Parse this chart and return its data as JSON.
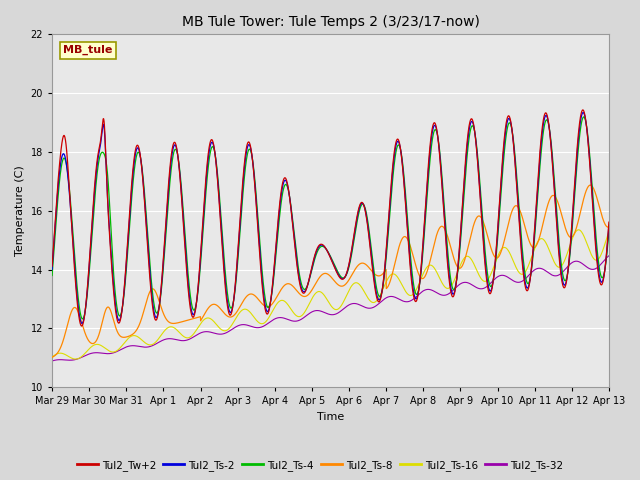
{
  "title": "MB Tule Tower: Tule Temps 2 (3/23/17-now)",
  "xlabel": "Time",
  "ylabel": "Temperature (C)",
  "ylim": [
    10,
    22
  ],
  "yticks": [
    10,
    12,
    14,
    16,
    18,
    20,
    22
  ],
  "fig_bg": "#d8d8d8",
  "plot_bg": "#e8e8e8",
  "grid_color": "#ffffff",
  "series_colors": {
    "Tul2_Tw+2": "#cc0000",
    "Tul2_Ts-2": "#0000dd",
    "Tul2_Ts-4": "#00bb00",
    "Tul2_Ts-8": "#ff8800",
    "Tul2_Ts-16": "#dddd00",
    "Tul2_Ts-32": "#9900aa"
  },
  "label_box": {
    "text": "MB_tule",
    "bg": "#ffffcc",
    "edge": "#999900",
    "text_color": "#990000"
  },
  "x_tick_labels": [
    "Mar 29",
    "Mar 30",
    "Mar 31",
    "Apr 1",
    "Apr 2",
    "Apr 3",
    "Apr 4",
    "Apr 5",
    "Apr 6",
    "Apr 7",
    "Apr 8",
    "Apr 9",
    "Apr 10",
    "Apr 11",
    "Apr 12",
    "Apr 13"
  ],
  "x_tick_positions": [
    0,
    1,
    2,
    3,
    4,
    5,
    6,
    7,
    8,
    9,
    10,
    11,
    12,
    13,
    14,
    15
  ]
}
